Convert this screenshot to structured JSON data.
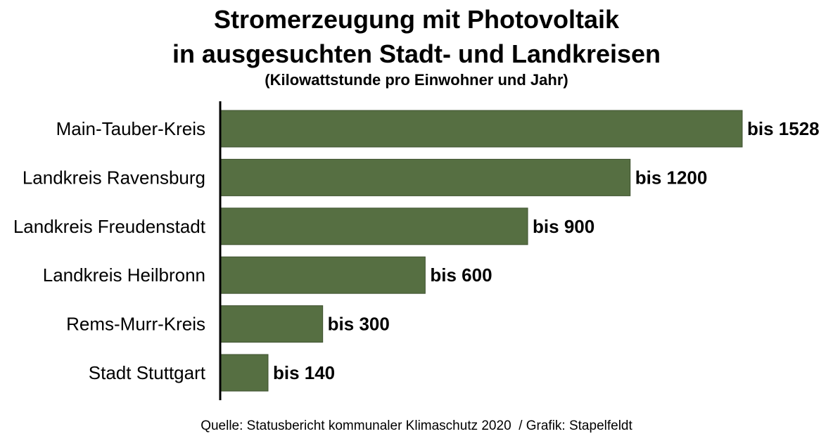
{
  "chart_data": {
    "type": "bar",
    "orientation": "horizontal",
    "title_line1": "Stromerzeugung mit Photovoltaik",
    "title_line2": "in ausgesuchten Stadt- und Landkreisen",
    "subtitle": "(Kilowattstunde pro Einwohner und Jahr)",
    "categories": [
      "Main-Tauber-Kreis",
      "Landkreis Ravensburg",
      "Landkreis Freudenstadt",
      "Landkreis Heilbronn",
      "Rems-Murr-Kreis",
      "Stadt Stuttgart"
    ],
    "values": [
      1528,
      1200,
      900,
      600,
      300,
      140
    ],
    "value_labels": [
      "bis 1528",
      "bis 1200",
      "bis 900",
      "bis 600",
      "bis 300",
      "bis 140"
    ],
    "xlim": [
      0,
      1528
    ],
    "bar_color": "#566f42",
    "grid": false,
    "legend": "none"
  },
  "source": "Quelle: Statusbericht kommunaler Klimaschutz 2020  / Grafik: Stapelfeldt"
}
